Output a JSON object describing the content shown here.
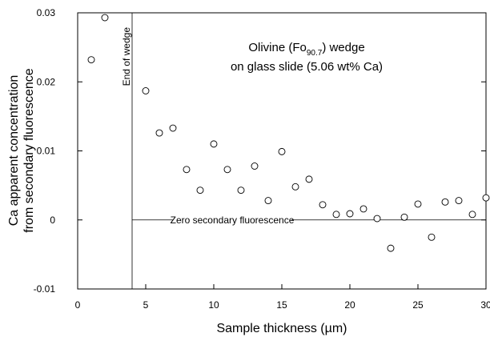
{
  "chart_data": {
    "type": "scatter",
    "title_line1": "Olivine (Fo",
    "title_sub": "90.7",
    "title_line1_end": ") wedge",
    "title_line2": "on glass slide (5.06 wt% Ca)",
    "xlabel": "Sample thickness (µm)",
    "ylabel_line1": "Ca apparent concentration",
    "ylabel_line2": "from secondary fluorescence",
    "xlim": [
      0,
      30
    ],
    "ylim": [
      -0.01,
      0.03
    ],
    "x_ticks": [
      {
        "value": 0,
        "label": "0"
      },
      {
        "value": 5,
        "label": "5"
      },
      {
        "value": 10,
        "label": "10"
      },
      {
        "value": 15,
        "label": "15"
      },
      {
        "value": 20,
        "label": "20"
      },
      {
        "value": 25,
        "label": "25"
      },
      {
        "value": 30,
        "label": "30"
      }
    ],
    "y_ticks": [
      {
        "value": -0.01,
        "label": "-0.01"
      },
      {
        "value": 0,
        "label": "0"
      },
      {
        "value": 0.01,
        "label": "0.01"
      },
      {
        "value": 0.02,
        "label": "0.02"
      },
      {
        "value": 0.03,
        "label": "0.03"
      }
    ],
    "vertical_line": {
      "x": 4,
      "label": "End of wedge"
    },
    "horizontal_line": {
      "y": 0,
      "label": "Zero secondary fluorescence"
    },
    "points": [
      {
        "x": 1,
        "y": 0.0232
      },
      {
        "x": 2,
        "y": 0.0293
      },
      {
        "x": 5,
        "y": 0.0187
      },
      {
        "x": 6,
        "y": 0.0126
      },
      {
        "x": 7,
        "y": 0.0133
      },
      {
        "x": 8,
        "y": 0.0073
      },
      {
        "x": 9,
        "y": 0.0043
      },
      {
        "x": 10,
        "y": 0.011
      },
      {
        "x": 11,
        "y": 0.0073
      },
      {
        "x": 12,
        "y": 0.0043
      },
      {
        "x": 13,
        "y": 0.0078
      },
      {
        "x": 14,
        "y": 0.0028
      },
      {
        "x": 15,
        "y": 0.0099
      },
      {
        "x": 16,
        "y": 0.0048
      },
      {
        "x": 17,
        "y": 0.0059
      },
      {
        "x": 18,
        "y": 0.0022
      },
      {
        "x": 19,
        "y": 0.0008
      },
      {
        "x": 20,
        "y": 0.0009
      },
      {
        "x": 21,
        "y": 0.0016
      },
      {
        "x": 22,
        "y": 0.0002
      },
      {
        "x": 23,
        "y": -0.0041
      },
      {
        "x": 24,
        "y": 0.0004
      },
      {
        "x": 25,
        "y": 0.0023
      },
      {
        "x": 26,
        "y": -0.0025
      },
      {
        "x": 27,
        "y": 0.0026
      },
      {
        "x": 28,
        "y": 0.0028
      },
      {
        "x": 29,
        "y": 0.0008
      },
      {
        "x": 30,
        "y": 0.0032
      }
    ],
    "grid": false,
    "legend": "none"
  }
}
